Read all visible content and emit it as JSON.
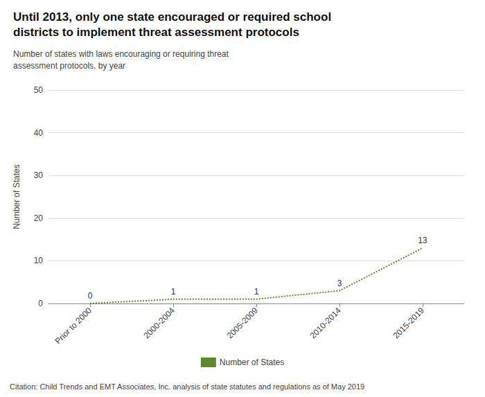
{
  "chart_data": {
    "type": "line",
    "title": "Until 2013, only one state encouraged or required school\ndistricts to implement threat assessment protocols",
    "subtitle": "Number of states with laws encouraging or requiring threat\nassessment protocols, by year",
    "categories": [
      "Prior to 2000",
      "2000-2004",
      "2005-2009",
      "2010-2014",
      "2015-2019"
    ],
    "series": [
      {
        "name": "Number of States",
        "color": "#5c8a2d",
        "values": [
          0,
          1,
          1,
          3,
          13
        ],
        "line_style": "dotted",
        "marker": "none"
      }
    ],
    "ylabel": "Number of States",
    "ylim": [
      0,
      50
    ],
    "yticks": [
      0,
      10,
      20,
      30,
      40,
      50
    ],
    "grid": true,
    "legend": "bottom",
    "data_labels": true,
    "annotations": [
      "Citation: Child Trends and EMT Associates, Inc. analysis of state statutes and regulations as of May 2019"
    ]
  }
}
